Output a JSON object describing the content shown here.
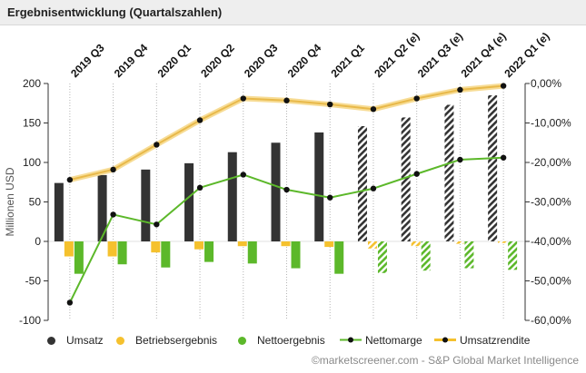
{
  "header": {
    "title": "Ergebnisentwicklung (Quartalszahlen)"
  },
  "chart_data": {
    "type": "bar+line",
    "title": "Ergebnisentwicklung (Quartalszahlen)",
    "categories": [
      "2019 Q3",
      "2019 Q4",
      "2020 Q1",
      "2020 Q2",
      "2020 Q3",
      "2020 Q4",
      "2021 Q1",
      "2021 Q2 (e)",
      "2021 Q3 (e)",
      "2021 Q4 (e)",
      "2022 Q1 (e)"
    ],
    "estimated": [
      false,
      false,
      false,
      false,
      false,
      false,
      false,
      true,
      true,
      true,
      true
    ],
    "ylabel": "Millionen USD",
    "ylim": [
      -100,
      200
    ],
    "yticks": [
      "200",
      "150",
      "100",
      "50",
      "0",
      "-50",
      "-100"
    ],
    "ytick_values": [
      200,
      150,
      100,
      50,
      0,
      -50,
      -100
    ],
    "y2lim": [
      -60,
      0
    ],
    "y2ticks": [
      "0,00%",
      "-10,00%",
      "-20,00%",
      "-30,00%",
      "-40,00%",
      "-50,00%",
      "-60,00%"
    ],
    "y2tick_values": [
      0,
      -10,
      -20,
      -30,
      -40,
      -50,
      -60
    ],
    "series": [
      {
        "name": "Umsatz",
        "type": "bar",
        "axis": "left",
        "color": "#333333",
        "values": [
          74,
          84,
          91,
          99,
          113,
          125,
          138,
          146,
          157,
          173,
          185
        ]
      },
      {
        "name": "Betriebsergebnis",
        "type": "bar",
        "axis": "left",
        "color": "#f5c12e",
        "values": [
          -19,
          -19,
          -14,
          -10,
          -6,
          -6,
          -7,
          -9,
          -6,
          -3,
          -2
        ]
      },
      {
        "name": "Nettoergebnis",
        "type": "bar",
        "axis": "left",
        "color": "#5cb82a",
        "values": [
          -41,
          -29,
          -33,
          -26,
          -28,
          -34,
          -41,
          -40,
          -37,
          -34,
          -36
        ]
      },
      {
        "name": "Nettomarge",
        "type": "line",
        "axis": "right",
        "color": "#5cb82a",
        "values": [
          -55.5,
          -33.2,
          -35.7,
          -26.4,
          -23.1,
          -26.9,
          -28.9,
          -26.6,
          -22.9,
          -19.3,
          -18.8
        ]
      },
      {
        "name": "Umsatzrendite",
        "type": "line",
        "axis": "right",
        "color": "#f5c12e",
        "values": [
          -24.4,
          -21.8,
          -15.5,
          -9.3,
          -3.8,
          -4.3,
          -5.3,
          -6.5,
          -3.8,
          -1.6,
          -0.6
        ]
      }
    ],
    "legend": [
      "Umsatz",
      "Betriebsergebnis",
      "Nettoergebnis",
      "Nettomarge",
      "Umsatzrendite"
    ],
    "legend_position": "bottom"
  },
  "credit": "©marketscreener.com - S&P Global Market Intelligence"
}
